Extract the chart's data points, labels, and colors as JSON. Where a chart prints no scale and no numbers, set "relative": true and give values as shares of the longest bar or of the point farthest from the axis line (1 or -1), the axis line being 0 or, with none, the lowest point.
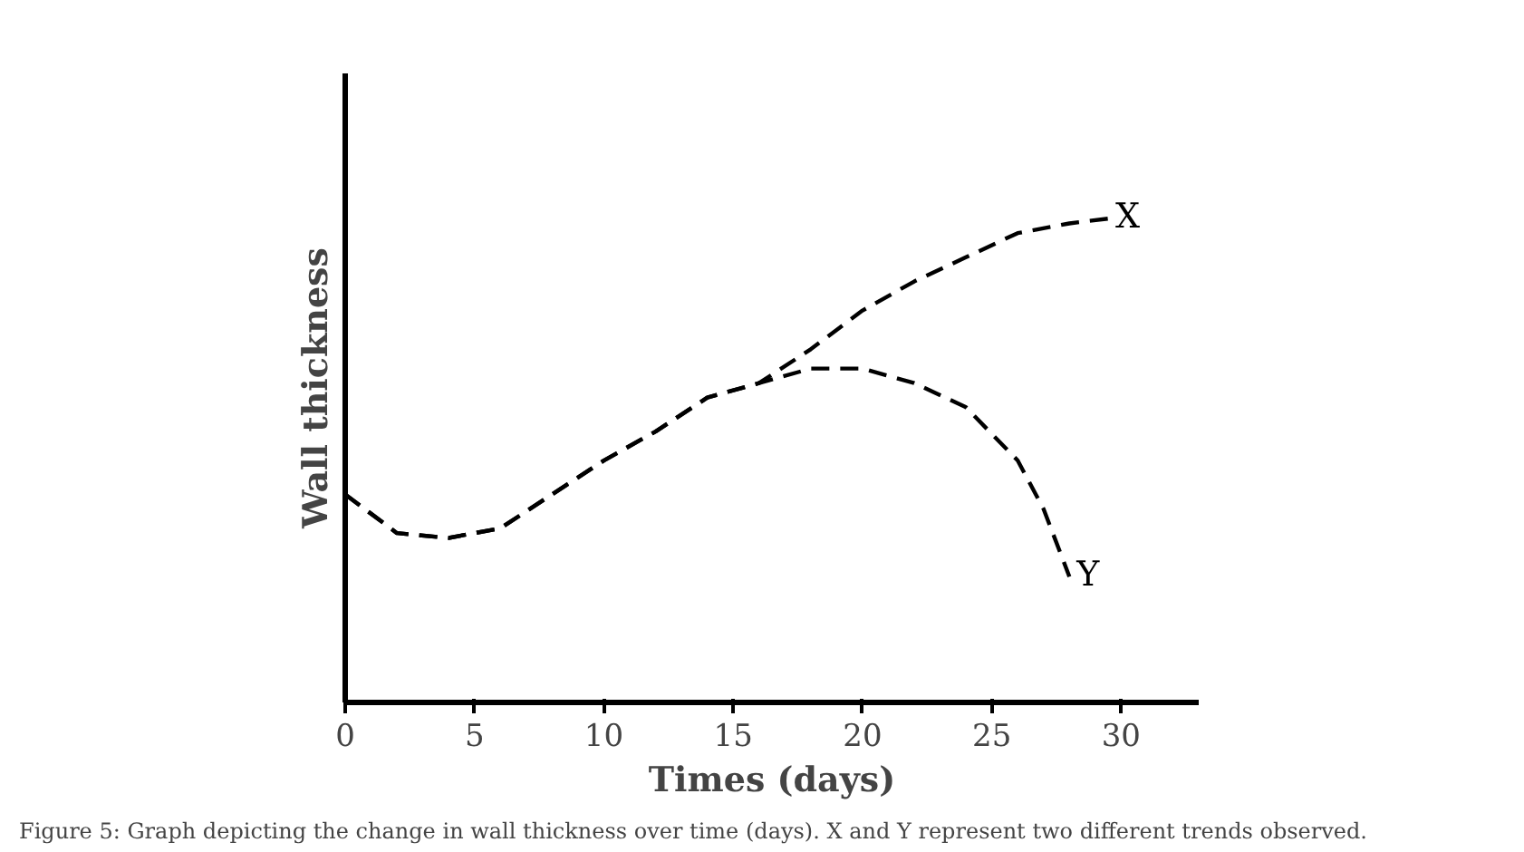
{
  "chart_data": {
    "type": "line",
    "xlabel": "Times (days)",
    "ylabel": "Wall thickness",
    "relative": true,
    "xlim": [
      0,
      33
    ],
    "xticks": [
      0,
      5,
      10,
      15,
      20,
      25,
      30
    ],
    "tick_labels": "x",
    "grid": false,
    "marker": "none",
    "line_style": "dashed",
    "series": [
      {
        "name": "X",
        "color": "#000000",
        "x": [
          0,
          2,
          4,
          6,
          8,
          10,
          12,
          14,
          16,
          18,
          20,
          22,
          24,
          26,
          28,
          29.5
        ],
        "values": [
          0.43,
          0.35,
          0.34,
          0.36,
          0.43,
          0.5,
          0.56,
          0.63,
          0.66,
          0.73,
          0.81,
          0.87,
          0.92,
          0.97,
          0.99,
          1.0
        ]
      },
      {
        "name": "Y",
        "color": "#000000",
        "x": [
          0,
          2,
          4,
          6,
          8,
          10,
          12,
          14,
          16,
          18,
          20,
          22,
          24,
          26,
          27,
          28
        ],
        "values": [
          0.43,
          0.35,
          0.34,
          0.36,
          0.43,
          0.5,
          0.56,
          0.63,
          0.66,
          0.69,
          0.69,
          0.66,
          0.61,
          0.5,
          0.4,
          0.26
        ]
      }
    ],
    "annotations": [
      "Figure 5: Graph depicting the change in wall thickness over time (days). X and Y represent two different trends observed."
    ]
  }
}
